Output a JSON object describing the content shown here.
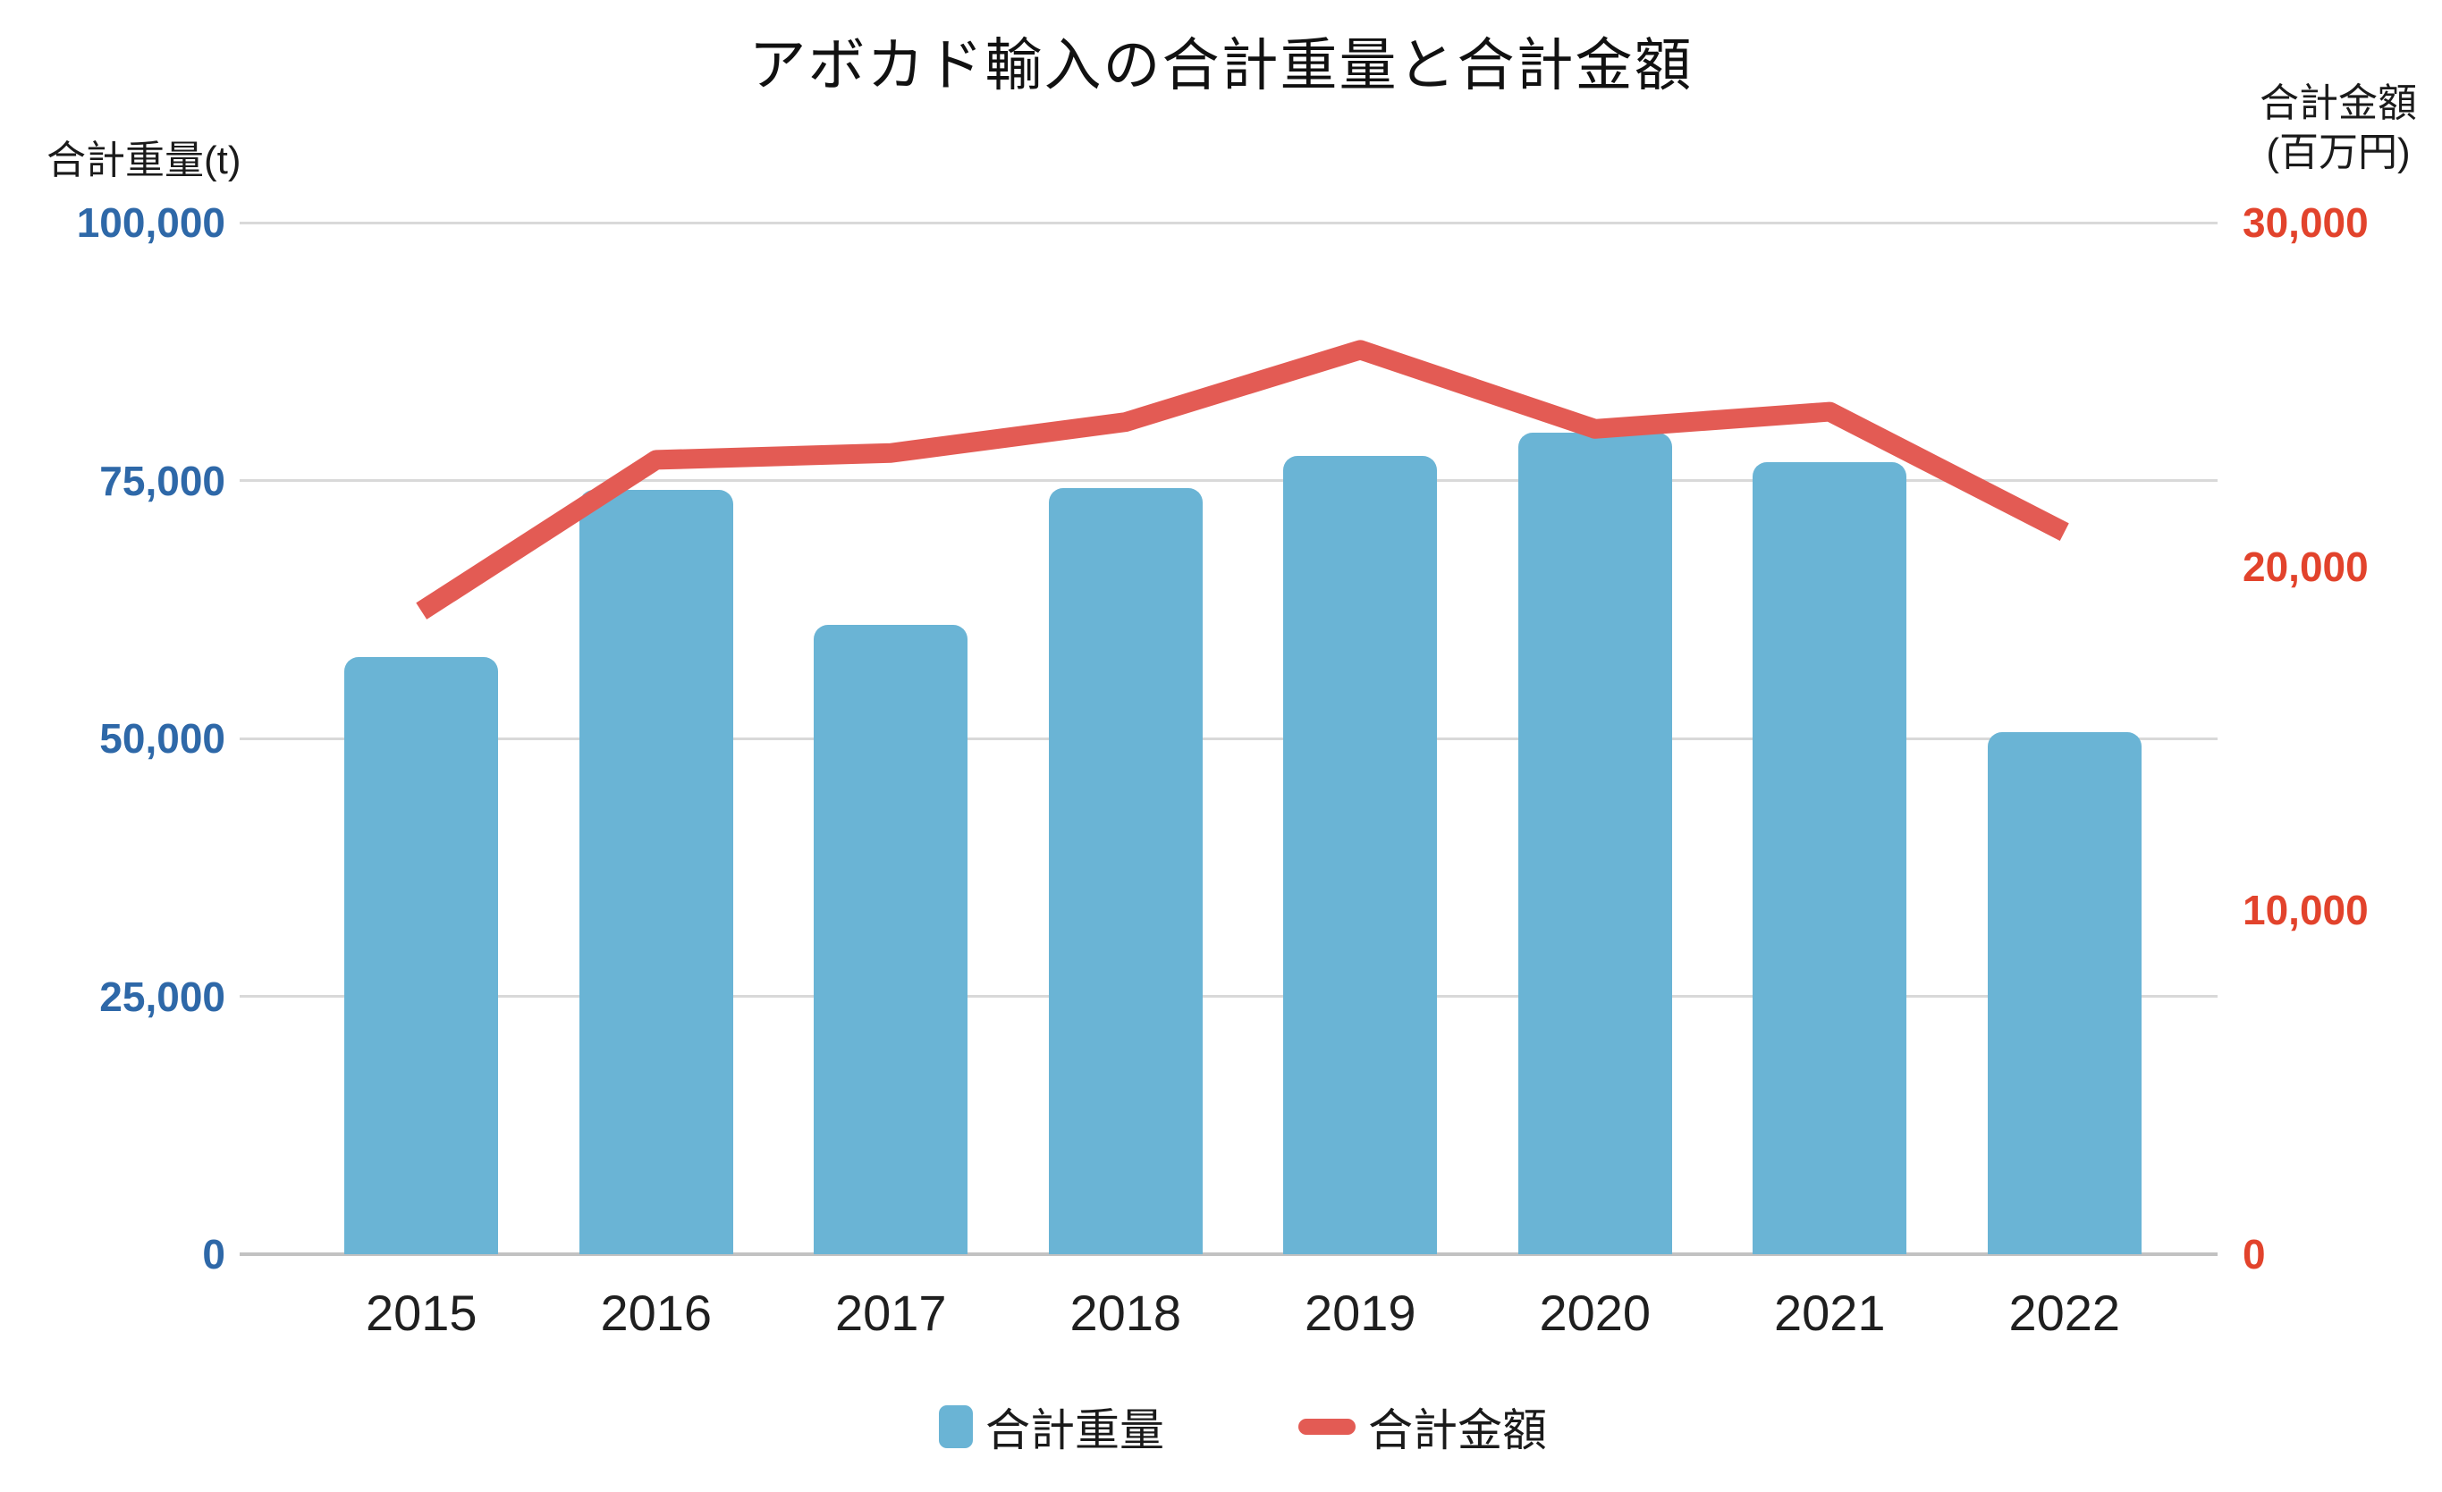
{
  "title": "アボカド輸入の合計重量と合計金額",
  "left_axis": {
    "label": "合計重量(t)",
    "tick_color": "#2e68a8",
    "ticks": [
      "100,000",
      "75,000",
      "50,000",
      "25,000",
      "0"
    ]
  },
  "right_axis": {
    "label_line1": "合計金額",
    "label_line2": "(百万円)",
    "tick_color": "#e2432c",
    "ticks": [
      "30,000",
      "20,000",
      "10,000",
      "0"
    ]
  },
  "legend": {
    "weight_label": "合計重量",
    "amount_label": "合計金額"
  },
  "colors": {
    "bar": "#6ab4d5",
    "line": "#e35b54",
    "grid": "#d9d9d9",
    "axis_line": "#c2c2c2"
  },
  "chart_data": {
    "type": "bar+line combo (dual axis)",
    "title": "アボカド輸入の合計重量と合計金額",
    "categories": [
      "2015",
      "2016",
      "2017",
      "2018",
      "2019",
      "2020",
      "2021",
      "2022"
    ],
    "series": [
      {
        "name": "合計重量",
        "type": "bar",
        "axis": "left",
        "unit": "t",
        "color": "#6ab4d5",
        "values": [
          57900,
          74100,
          61000,
          74300,
          77400,
          79600,
          76800,
          50600
        ]
      },
      {
        "name": "合計金額",
        "type": "line",
        "axis": "right",
        "unit": "百万円",
        "color": "#e35b54",
        "values": [
          18700,
          23100,
          23300,
          24200,
          26300,
          24000,
          24500,
          21000
        ]
      }
    ],
    "left_axis_label": "合計重量(t)",
    "right_axis_label": "合計金額(百万円)",
    "left_ylim": [
      0,
      100000
    ],
    "right_ylim": [
      0,
      30000
    ],
    "left_ticks": [
      0,
      25000,
      50000,
      75000,
      100000
    ],
    "right_ticks": [
      0,
      10000,
      20000,
      30000
    ],
    "grid": true,
    "legend_position": "bottom"
  }
}
